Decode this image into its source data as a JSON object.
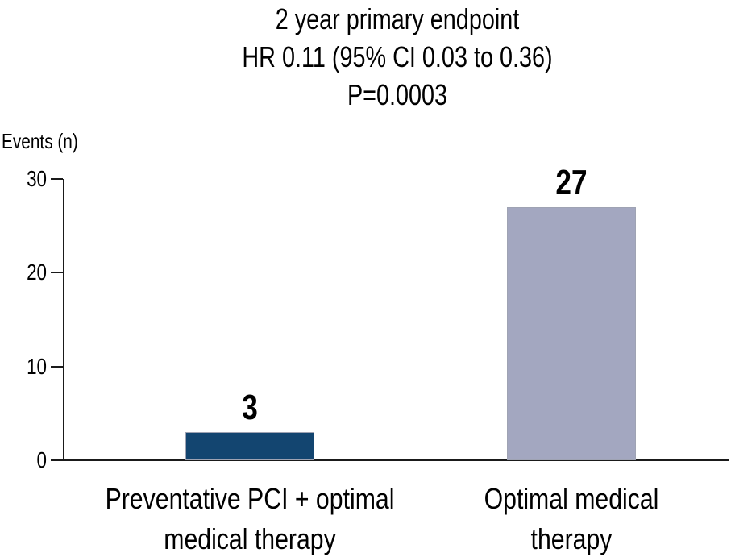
{
  "chart_data": {
    "type": "bar",
    "title_lines": [
      "2 year primary endpoint",
      "HR 0.11 (95% CI 0.03 to 0.36)",
      "P=0.0003"
    ],
    "ylabel": "Events (n)",
    "categories": [
      "Preventative PCI + optimal medical therapy",
      "Optimal medical therapy"
    ],
    "category_lines": [
      [
        "Preventative PCI + optimal",
        "medical therapy"
      ],
      [
        "Optimal medical",
        "therapy"
      ]
    ],
    "values": [
      3,
      27
    ],
    "bar_labels": [
      "3",
      "27"
    ],
    "bar_colors": [
      "#134570",
      "#a3a7c0"
    ],
    "yticks": [
      0,
      10,
      20,
      30
    ],
    "ylim": [
      0,
      30
    ],
    "grid": false,
    "legend": false,
    "axis_color": "#1a1a1a",
    "text_color": "#000000",
    "background_color": "#ffffff"
  }
}
